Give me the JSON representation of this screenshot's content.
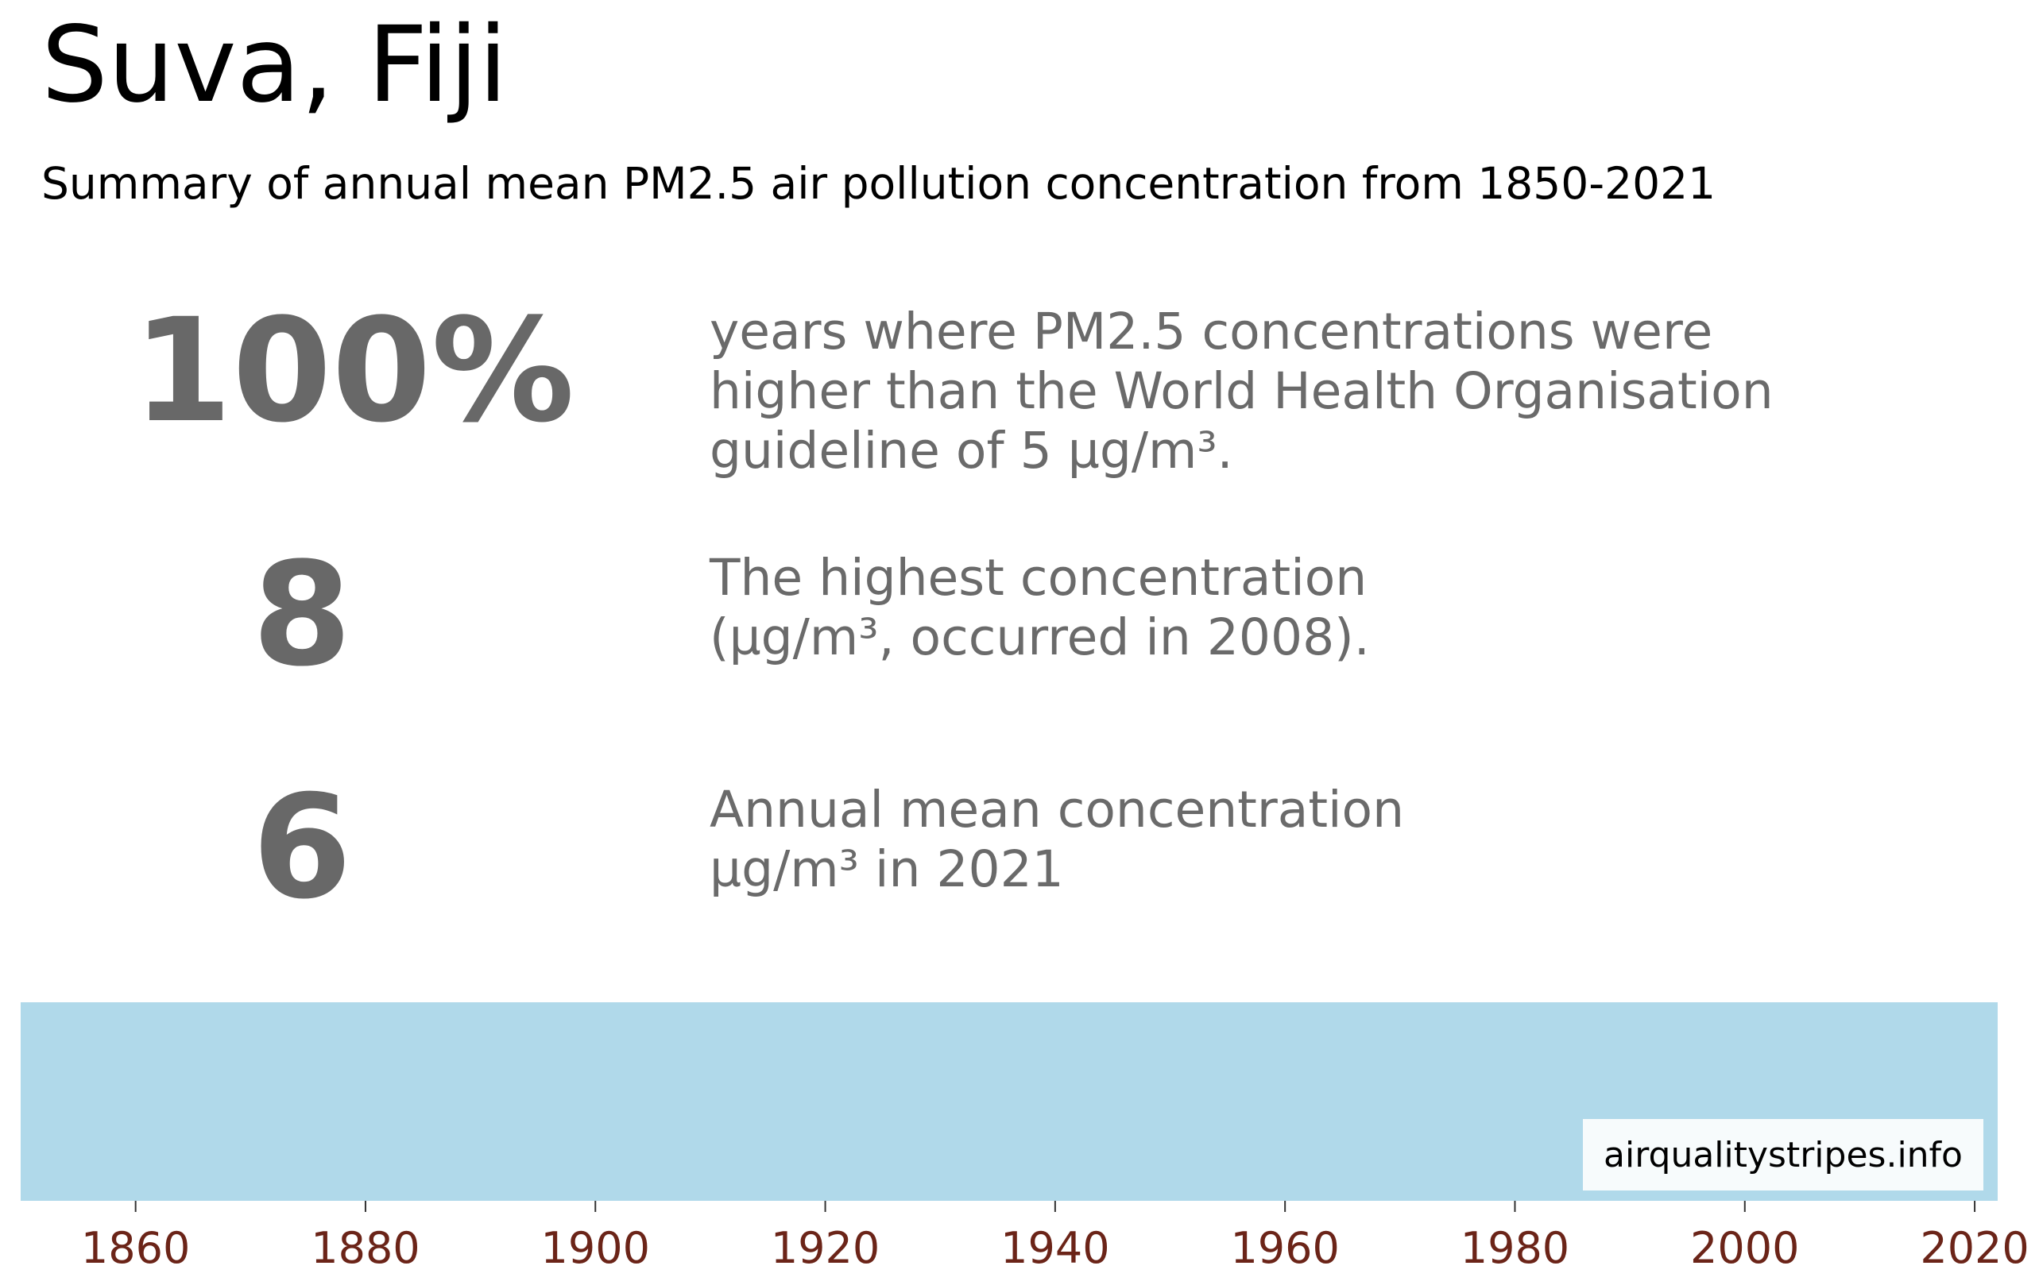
{
  "title": "Suva, Fiji",
  "subtitle": "Summary of annual mean PM2.5 air pollution concentration from 1850-2021",
  "stats": [
    {
      "value": "100%",
      "lines": [
        "years where PM2.5 concentrations were",
        "higher than the World Health Organisation",
        "guideline of 5 µg/m³."
      ]
    },
    {
      "value": "8",
      "lines": [
        "The highest concentration",
        "(µg/m³, occurred in 2008)."
      ]
    },
    {
      "value": "6",
      "lines": [
        "Annual mean concentration",
        "µg/m³ in 2021"
      ]
    }
  ],
  "source": "airqualitystripes.info",
  "colors": {
    "stripe": "#b0d9ea",
    "tick_label": "#6b2418",
    "stat_text": "#686868"
  },
  "chart_data": {
    "type": "heatmap",
    "title": "",
    "xlabel": "",
    "ylabel": "",
    "xlim": [
      1850,
      2022
    ],
    "x_ticks": [
      1860,
      1880,
      1900,
      1920,
      1940,
      1960,
      1980,
      2000,
      2020
    ],
    "x_tick_labels": [
      "1860",
      "1880",
      "1900",
      "1920",
      "1940",
      "1960",
      "1980",
      "2000",
      "2020"
    ],
    "years": [
      1850,
      2021
    ],
    "stripe_color": "#b0d9ea",
    "grid": false
  }
}
